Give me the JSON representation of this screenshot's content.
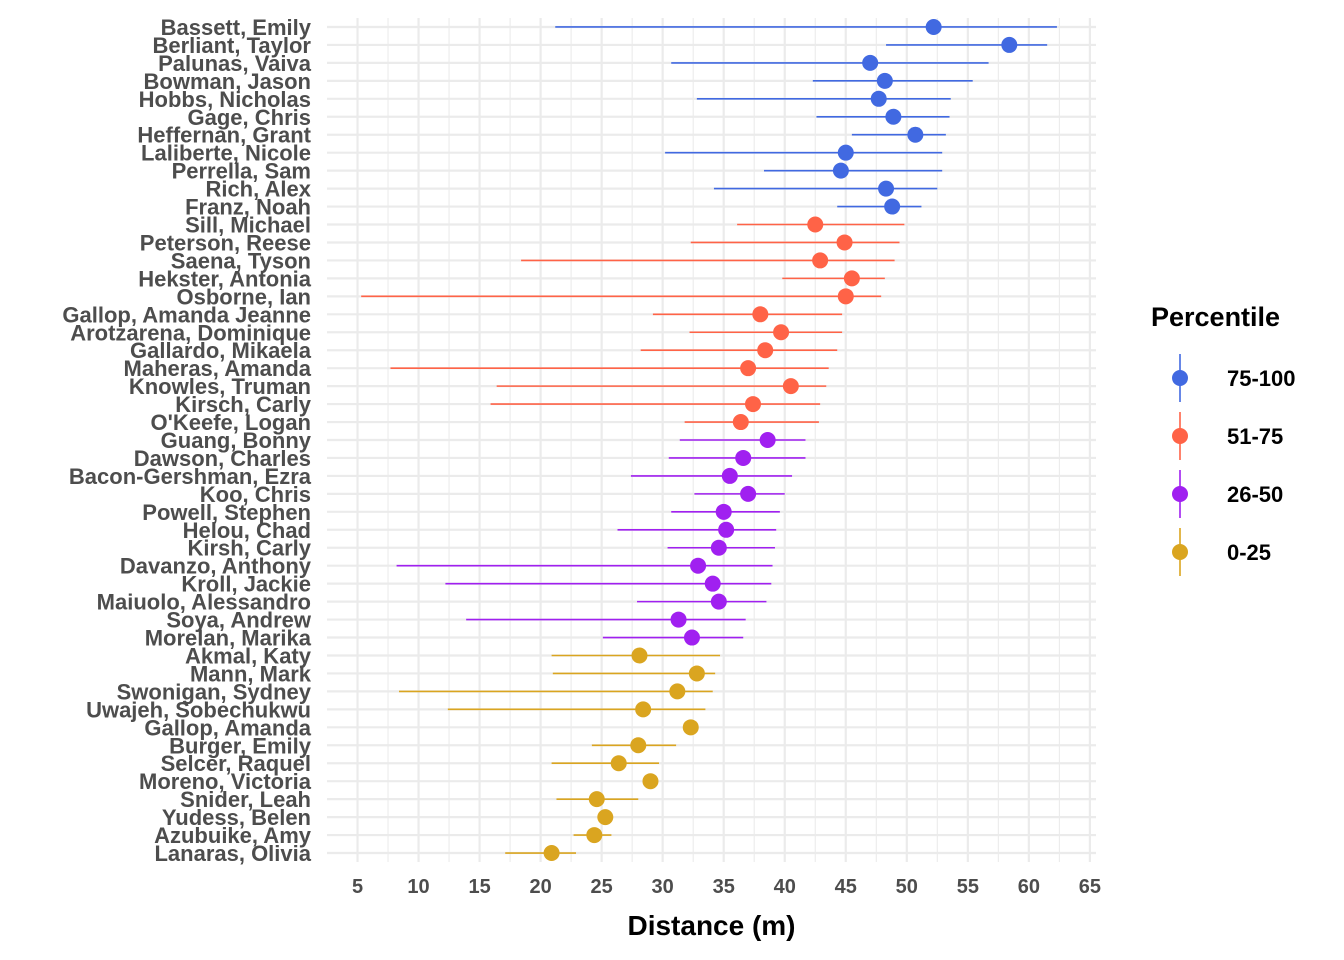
{
  "chart_data": {
    "type": "scatter",
    "xlabel": "Distance (m)",
    "ylabel": "",
    "xlim": [
      2.5,
      65.5
    ],
    "xticks": [
      5,
      10,
      15,
      20,
      25,
      30,
      35,
      40,
      45,
      50,
      55,
      60,
      65
    ],
    "grid": true,
    "legend": {
      "title": "Percentile",
      "placement": "right",
      "entries": [
        {
          "label": "75-100",
          "color": "#4169E1"
        },
        {
          "label": "51-75",
          "color": "#FF6347"
        },
        {
          "label": "26-50",
          "color": "#A020F0"
        },
        {
          "label": "0-25",
          "color": "#DAA520"
        }
      ]
    },
    "points": [
      {
        "name": "Bassett, Emily",
        "group": "75-100",
        "x": 52.2,
        "low": 21.2,
        "high": 62.3
      },
      {
        "name": "Berliant, Taylor",
        "group": "75-100",
        "x": 58.4,
        "low": 48.3,
        "high": 61.5
      },
      {
        "name": "Palunas, Vaiva",
        "group": "75-100",
        "x": 47.0,
        "low": 30.7,
        "high": 56.7
      },
      {
        "name": "Bowman, Jason",
        "group": "75-100",
        "x": 48.2,
        "low": 42.3,
        "high": 55.4
      },
      {
        "name": "Hobbs, Nicholas",
        "group": "75-100",
        "x": 47.7,
        "low": 32.8,
        "high": 53.6
      },
      {
        "name": "Gage, Chris",
        "group": "75-100",
        "x": 48.9,
        "low": 42.6,
        "high": 53.5
      },
      {
        "name": "Heffernan, Grant",
        "group": "75-100",
        "x": 50.7,
        "low": 45.5,
        "high": 53.2
      },
      {
        "name": "Laliberte, Nicole",
        "group": "75-100",
        "x": 45.0,
        "low": 30.2,
        "high": 52.9
      },
      {
        "name": "Perrella, Sam",
        "group": "75-100",
        "x": 44.6,
        "low": 38.3,
        "high": 52.9
      },
      {
        "name": "Rich, Alex",
        "group": "75-100",
        "x": 48.3,
        "low": 34.2,
        "high": 52.5
      },
      {
        "name": "Franz, Noah",
        "group": "75-100",
        "x": 48.8,
        "low": 44.3,
        "high": 51.2
      },
      {
        "name": "Sill, Michael",
        "group": "51-75",
        "x": 42.5,
        "low": 36.1,
        "high": 49.8
      },
      {
        "name": "Peterson, Reese",
        "group": "51-75",
        "x": 44.9,
        "low": 32.3,
        "high": 49.4
      },
      {
        "name": "Saena, Tyson",
        "group": "51-75",
        "x": 42.9,
        "low": 18.4,
        "high": 49.0
      },
      {
        "name": "Hekster, Antonia",
        "group": "51-75",
        "x": 45.5,
        "low": 39.8,
        "high": 48.2
      },
      {
        "name": "Osborne, Ian",
        "group": "51-75",
        "x": 45.0,
        "low": 5.3,
        "high": 47.9
      },
      {
        "name": "Gallop, Amanda Jeanne",
        "group": "51-75",
        "x": 38.0,
        "low": 29.2,
        "high": 44.7
      },
      {
        "name": "Arotzarena, Dominique",
        "group": "51-75",
        "x": 39.7,
        "low": 32.2,
        "high": 44.7
      },
      {
        "name": "Gallardo, Mikaela",
        "group": "51-75",
        "x": 38.4,
        "low": 28.2,
        "high": 44.3
      },
      {
        "name": "Maheras, Amanda",
        "group": "51-75",
        "x": 37.0,
        "low": 7.7,
        "high": 43.6
      },
      {
        "name": "Knowles, Truman",
        "group": "51-75",
        "x": 40.5,
        "low": 16.4,
        "high": 43.4
      },
      {
        "name": "Kirsch, Carly",
        "group": "51-75",
        "x": 37.4,
        "low": 15.9,
        "high": 42.9
      },
      {
        "name": "O'Keefe, Logan",
        "group": "51-75",
        "x": 36.4,
        "low": 31.8,
        "high": 42.8
      },
      {
        "name": "Guang, Bonny",
        "group": "26-50",
        "x": 38.6,
        "low": 31.4,
        "high": 41.7
      },
      {
        "name": "Dawson, Charles",
        "group": "26-50",
        "x": 36.6,
        "low": 30.5,
        "high": 41.7
      },
      {
        "name": "Bacon-Gershman, Ezra",
        "group": "26-50",
        "x": 35.5,
        "low": 27.4,
        "high": 40.6
      },
      {
        "name": "Koo, Chris",
        "group": "26-50",
        "x": 37.0,
        "low": 32.6,
        "high": 40.0
      },
      {
        "name": "Powell, Stephen",
        "group": "26-50",
        "x": 35.0,
        "low": 30.7,
        "high": 39.6
      },
      {
        "name": "Helou, Chad",
        "group": "26-50",
        "x": 35.2,
        "low": 26.3,
        "high": 39.3
      },
      {
        "name": "Kirsh, Carly",
        "group": "26-50",
        "x": 34.6,
        "low": 30.4,
        "high": 39.2
      },
      {
        "name": "Davanzo, Anthony",
        "group": "26-50",
        "x": 32.9,
        "low": 8.2,
        "high": 39.0
      },
      {
        "name": "Kroll, Jackie",
        "group": "26-50",
        "x": 34.1,
        "low": 12.2,
        "high": 38.9
      },
      {
        "name": "Maiuolo, Alessandro",
        "group": "26-50",
        "x": 34.6,
        "low": 27.9,
        "high": 38.5
      },
      {
        "name": "Soya, Andrew",
        "group": "26-50",
        "x": 31.3,
        "low": 13.9,
        "high": 36.8
      },
      {
        "name": "Morelan, Marika",
        "group": "26-50",
        "x": 32.4,
        "low": 25.1,
        "high": 36.6
      },
      {
        "name": "Akmal, Katy",
        "group": "0-25",
        "x": 28.1,
        "low": 20.9,
        "high": 34.7
      },
      {
        "name": "Mann, Mark",
        "group": "0-25",
        "x": 32.8,
        "low": 21.0,
        "high": 34.3
      },
      {
        "name": "Swonigan, Sydney",
        "group": "0-25",
        "x": 31.2,
        "low": 8.4,
        "high": 34.1
      },
      {
        "name": "Uwajeh, Sobechukwu",
        "group": "0-25",
        "x": 28.4,
        "low": 12.4,
        "high": 33.5
      },
      {
        "name": "Gallop, Amanda",
        "group": "0-25",
        "x": 32.3,
        "low": null,
        "high": null
      },
      {
        "name": "Burger, Emily",
        "group": "0-25",
        "x": 28.0,
        "low": 24.2,
        "high": 31.1
      },
      {
        "name": "Selcer, Raquel",
        "group": "0-25",
        "x": 26.4,
        "low": 20.9,
        "high": 29.7
      },
      {
        "name": "Moreno, Victoria",
        "group": "0-25",
        "x": 29.0,
        "low": null,
        "high": null
      },
      {
        "name": "Snider, Leah",
        "group": "0-25",
        "x": 24.6,
        "low": 21.3,
        "high": 28.0
      },
      {
        "name": "Yudess, Belen",
        "group": "0-25",
        "x": 25.3,
        "low": null,
        "high": null
      },
      {
        "name": "Azubuike, Amy",
        "group": "0-25",
        "x": 24.4,
        "low": 22.7,
        "high": 25.8
      },
      {
        "name": "Lanaras, Olivia",
        "group": "0-25",
        "x": 20.9,
        "low": 17.1,
        "high": 22.9
      }
    ]
  }
}
